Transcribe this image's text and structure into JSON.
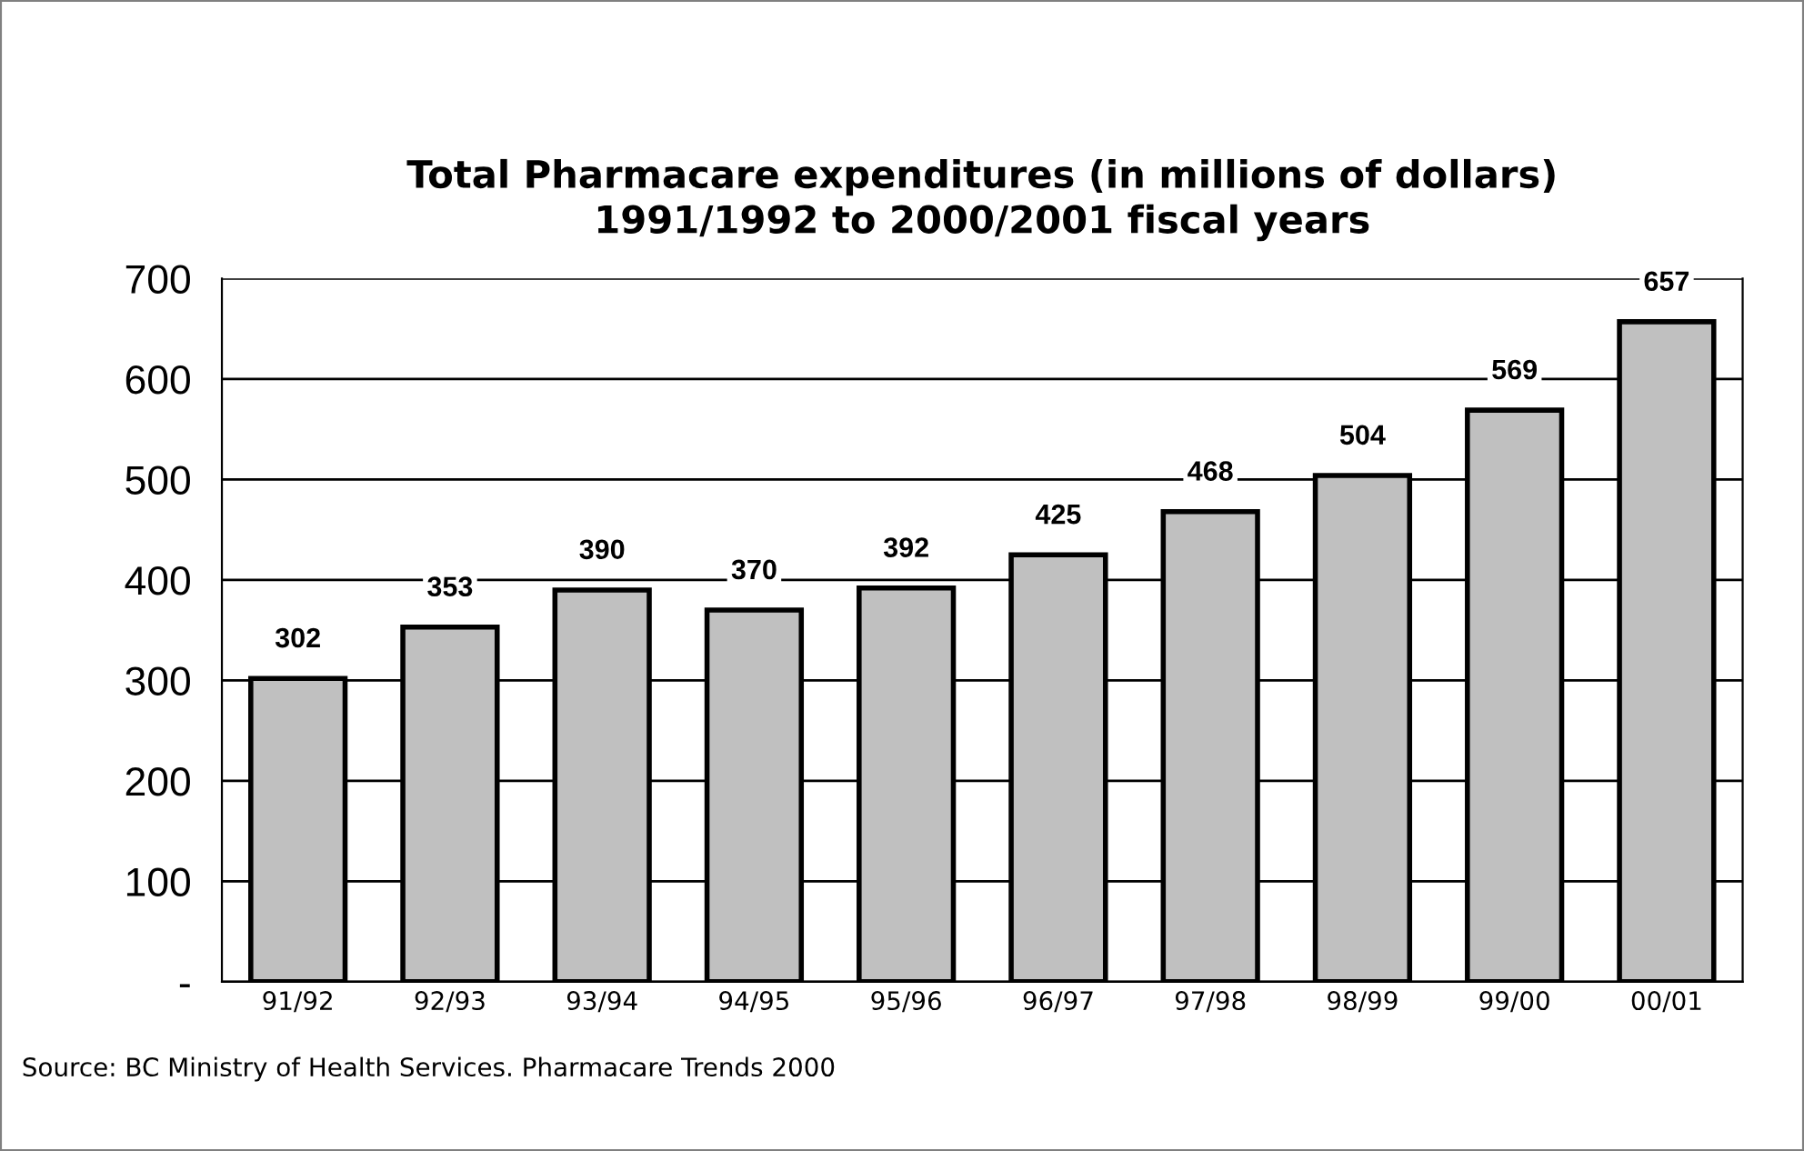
{
  "chart_data": {
    "type": "bar",
    "title": "Total Pharmacare expenditures (in millions of dollars)\n1991/1992 to 2000/2001 fiscal years",
    "categories": [
      "91/92",
      "92/93",
      "93/94",
      "94/95",
      "95/96",
      "96/97",
      "97/98",
      "98/99",
      "99/00",
      "00/01"
    ],
    "values": [
      302,
      353,
      390,
      370,
      392,
      425,
      468,
      504,
      569,
      657
    ],
    "color": "#c0c0c0",
    "ylim": [
      0,
      700
    ],
    "yticks": [
      {
        "value": 0,
        "label": "-"
      },
      100,
      200,
      300,
      400,
      500,
      600,
      700
    ],
    "grid": "y",
    "data_labels": true,
    "annotations": [
      "Source: BC Ministry of Health Services. Pharmacare Trends 2000"
    ]
  }
}
